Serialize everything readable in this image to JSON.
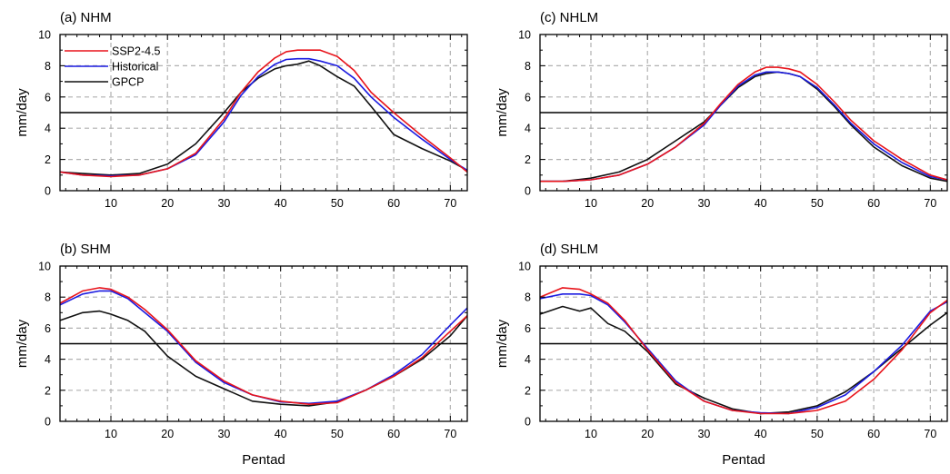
{
  "figure": {
    "xlabel": "Pentad",
    "ylabel": "mm/day",
    "threshold": 5
  },
  "colors": {
    "SSP2-4.5": "#e8141b",
    "Historical": "#1a1ae0",
    "GPCP": "#111111",
    "grid": "#b0b0b0"
  },
  "chart_data": [
    {
      "type": "line",
      "title": "(a) NHM",
      "xlabel": "Pentad",
      "ylabel": "mm/day",
      "xlim": [
        1,
        73
      ],
      "ylim": [
        0,
        10
      ],
      "xticks": [
        10,
        20,
        30,
        40,
        50,
        60,
        70
      ],
      "yticks": [
        0,
        2,
        4,
        6,
        8,
        10
      ],
      "grid": true,
      "legend": "top-left",
      "hline": 5,
      "x_pentads": [
        1,
        5,
        10,
        15,
        20,
        25,
        30,
        33,
        36,
        39,
        41,
        43,
        45,
        47,
        50,
        53,
        56,
        60,
        65,
        70,
        73
      ],
      "series": [
        {
          "name": "SSP2-4.5",
          "values": [
            1.2,
            1.0,
            0.9,
            1.0,
            1.4,
            2.4,
            4.6,
            6.3,
            7.6,
            8.5,
            8.9,
            9.0,
            9.0,
            9.0,
            8.6,
            7.7,
            6.3,
            5.0,
            3.5,
            2.1,
            1.2
          ]
        },
        {
          "name": "Historical",
          "values": [
            1.2,
            1.0,
            0.95,
            1.0,
            1.4,
            2.3,
            4.4,
            6.1,
            7.3,
            8.1,
            8.4,
            8.45,
            8.45,
            8.3,
            8.0,
            7.2,
            6.0,
            4.7,
            3.3,
            2.0,
            1.3
          ]
        },
        {
          "name": "GPCP",
          "values": [
            1.2,
            1.1,
            1.0,
            1.1,
            1.7,
            3.0,
            5.0,
            6.3,
            7.2,
            7.8,
            8.0,
            8.1,
            8.3,
            8.0,
            7.3,
            6.7,
            5.4,
            3.6,
            2.7,
            1.9,
            1.3
          ]
        }
      ]
    },
    {
      "type": "line",
      "title": "(c) NHLM",
      "xlabel": "Pentad",
      "ylabel": "mm/day",
      "xlim": [
        1,
        73
      ],
      "ylim": [
        0,
        10
      ],
      "xticks": [
        10,
        20,
        30,
        40,
        50,
        60,
        70
      ],
      "yticks": [
        0,
        2,
        4,
        6,
        8,
        10
      ],
      "grid": true,
      "hline": 5,
      "x_pentads": [
        1,
        5,
        10,
        15,
        20,
        25,
        30,
        33,
        36,
        39,
        41,
        43,
        45,
        47,
        50,
        53,
        56,
        60,
        65,
        70,
        73
      ],
      "series": [
        {
          "name": "SSP2-4.5",
          "values": [
            0.6,
            0.6,
            0.7,
            1.0,
            1.7,
            2.8,
            4.3,
            5.6,
            6.8,
            7.6,
            7.9,
            7.9,
            7.8,
            7.6,
            6.8,
            5.7,
            4.5,
            3.2,
            2.0,
            1.0,
            0.7
          ]
        },
        {
          "name": "Historical",
          "values": [
            0.6,
            0.6,
            0.7,
            1.0,
            1.7,
            2.8,
            4.2,
            5.5,
            6.7,
            7.4,
            7.6,
            7.6,
            7.5,
            7.3,
            6.6,
            5.5,
            4.3,
            3.0,
            1.8,
            0.9,
            0.7
          ]
        },
        {
          "name": "GPCP",
          "values": [
            0.6,
            0.6,
            0.8,
            1.2,
            2.0,
            3.2,
            4.4,
            5.5,
            6.6,
            7.3,
            7.5,
            7.6,
            7.5,
            7.3,
            6.5,
            5.4,
            4.2,
            2.8,
            1.6,
            0.8,
            0.6
          ]
        }
      ]
    },
    {
      "type": "line",
      "title": "(b) SHM",
      "xlabel": "Pentad",
      "ylabel": "mm/day",
      "xlim": [
        1,
        73
      ],
      "ylim": [
        0,
        10
      ],
      "xticks": [
        10,
        20,
        30,
        40,
        50,
        60,
        70
      ],
      "yticks": [
        0,
        2,
        4,
        6,
        8,
        10
      ],
      "grid": true,
      "hline": 5,
      "x_pentads": [
        1,
        5,
        8,
        10,
        13,
        16,
        20,
        25,
        30,
        35,
        40,
        45,
        50,
        55,
        60,
        65,
        70,
        73
      ],
      "series": [
        {
          "name": "SSP2-4.5",
          "values": [
            7.6,
            8.4,
            8.6,
            8.5,
            8.0,
            7.2,
            5.9,
            3.9,
            2.6,
            1.7,
            1.3,
            1.1,
            1.2,
            2.0,
            2.9,
            4.1,
            5.8,
            6.8
          ]
        },
        {
          "name": "Historical",
          "values": [
            7.5,
            8.2,
            8.4,
            8.4,
            7.9,
            7.0,
            5.8,
            3.8,
            2.5,
            1.7,
            1.25,
            1.15,
            1.3,
            2.0,
            3.0,
            4.3,
            6.2,
            7.3
          ]
        },
        {
          "name": "GPCP",
          "values": [
            6.5,
            7.0,
            7.1,
            6.9,
            6.5,
            5.8,
            4.2,
            2.9,
            2.1,
            1.3,
            1.1,
            1.0,
            1.25,
            2.0,
            2.9,
            4.0,
            5.5,
            6.8
          ]
        }
      ]
    },
    {
      "type": "line",
      "title": "(d) SHLM",
      "xlabel": "Pentad",
      "ylabel": "mm/day",
      "xlim": [
        1,
        73
      ],
      "ylim": [
        0,
        10
      ],
      "xticks": [
        10,
        20,
        30,
        40,
        50,
        60,
        70
      ],
      "yticks": [
        0,
        2,
        4,
        6,
        8,
        10
      ],
      "grid": true,
      "hline": 5,
      "x_pentads": [
        1,
        5,
        8,
        10,
        13,
        16,
        20,
        25,
        30,
        35,
        40,
        45,
        50,
        55,
        60,
        65,
        70,
        73
      ],
      "series": [
        {
          "name": "SSP2-4.5",
          "values": [
            8.0,
            8.6,
            8.5,
            8.2,
            7.6,
            6.5,
            4.6,
            2.5,
            1.3,
            0.7,
            0.5,
            0.5,
            0.7,
            1.3,
            2.7,
            4.6,
            7.0,
            7.8
          ]
        },
        {
          "name": "Historical",
          "values": [
            7.9,
            8.2,
            8.2,
            8.1,
            7.5,
            6.4,
            4.7,
            2.6,
            1.3,
            0.7,
            0.55,
            0.5,
            0.9,
            1.7,
            3.2,
            4.9,
            7.1,
            7.7
          ]
        },
        {
          "name": "GPCP",
          "values": [
            6.9,
            7.4,
            7.1,
            7.3,
            6.3,
            5.8,
            4.5,
            2.4,
            1.5,
            0.8,
            0.5,
            0.6,
            1.0,
            1.9,
            3.2,
            4.7,
            6.2,
            7.0
          ]
        }
      ]
    }
  ]
}
